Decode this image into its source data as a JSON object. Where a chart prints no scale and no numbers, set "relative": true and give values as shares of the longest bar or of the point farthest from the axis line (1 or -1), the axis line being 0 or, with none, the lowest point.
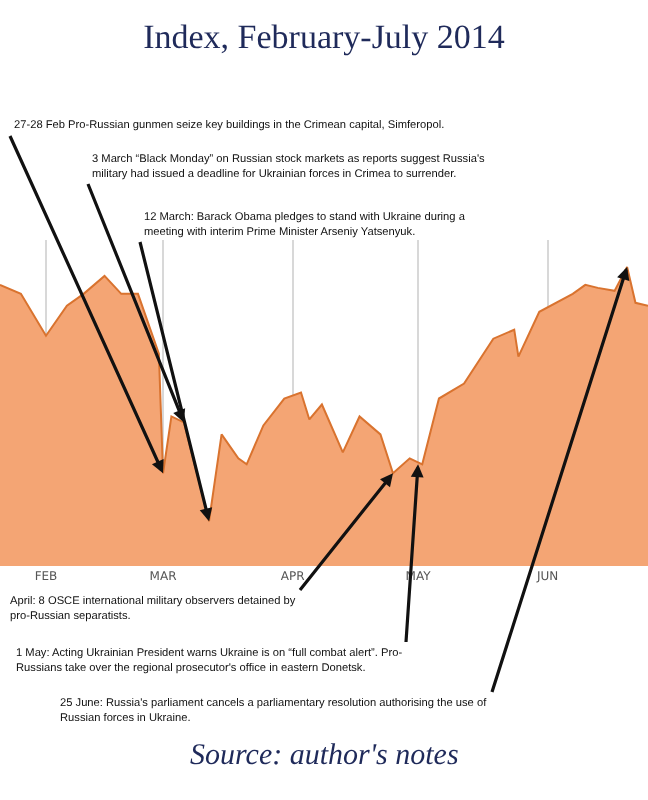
{
  "chart_data": {
    "type": "area",
    "title": "Index, February-July 2014",
    "relative": true,
    "grid": "x",
    "x": [
      "2014-01-21",
      "2014-01-26",
      "2014-02-01",
      "2014-02-06",
      "2014-02-10",
      "2014-02-15",
      "2014-02-19",
      "2014-02-23",
      "2014-02-28",
      "2014-03-01",
      "2014-03-03",
      "2014-03-06",
      "2014-03-12",
      "2014-03-15",
      "2014-03-19",
      "2014-03-21",
      "2014-03-25",
      "2014-03-30",
      "2014-04-03",
      "2014-04-05",
      "2014-04-08",
      "2014-04-13",
      "2014-04-17",
      "2014-04-22",
      "2014-04-25",
      "2014-04-29",
      "2014-05-02",
      "2014-05-06",
      "2014-05-12",
      "2014-05-19",
      "2014-05-24",
      "2014-05-25",
      "2014-05-30",
      "2014-06-07",
      "2014-06-10",
      "2014-06-13",
      "2014-06-17",
      "2014-06-20",
      "2014-06-22",
      "2014-06-25"
    ],
    "series": [
      {
        "color": "#f4a574",
        "values": [
          0.94,
          0.91,
          0.77,
          0.87,
          0.91,
          0.97,
          0.91,
          0.91,
          0.71,
          0.31,
          0.5,
          0.48,
          0.15,
          0.44,
          0.36,
          0.34,
          0.47,
          0.56,
          0.58,
          0.49,
          0.54,
          0.38,
          0.5,
          0.44,
          0.31,
          0.36,
          0.34,
          0.56,
          0.61,
          0.76,
          0.79,
          0.7,
          0.85,
          0.91,
          0.94,
          0.93,
          0.92,
          1.0,
          0.88,
          0.87
        ]
      }
    ],
    "xlim": [
      "2014-01-21",
      "2014-06-25"
    ],
    "xticks": [
      {
        "value": "2014-02-01",
        "label": "FEB"
      },
      {
        "value": "2014-03-01",
        "label": "MAR"
      },
      {
        "value": "2014-04-01",
        "label": "APR"
      },
      {
        "value": "2014-05-01",
        "label": "MAY"
      },
      {
        "value": "2014-06-01",
        "label": "JUN"
      }
    ],
    "annotations": [
      {
        "text": "27-28 Feb Pro-Russian gunmen seize key buildings in the Crimean capital, Simferopol.",
        "x": "2014-03-01",
        "y": 0.31
      },
      {
        "text": "3 March “Black Monday” on Russian stock markets as reports suggest Russia's military had issued a deadline for Ukrainian forces in Crimea to surrender.",
        "x": "2014-03-06",
        "y": 0.48
      },
      {
        "text": "12 March: Barack Obama pledges to stand with Ukraine during a meeting with interim Prime Minister Arseniy Yatsenyuk.",
        "x": "2014-03-12",
        "y": 0.15
      },
      {
        "text": "April: 8 OSCE international military observers detained by pro-Russian separatists.",
        "x": "2014-04-25",
        "y": 0.31
      },
      {
        "text": "1 May: Acting Ukrainian President warns Ukraine is on “full combat alert”. Pro-Russians take over the regional prosecutor's office in eastern Donetsk.",
        "x": "2014-05-01",
        "y": 0.34
      },
      {
        "text": "25 June: Russia's parliament cancels a parliamentary resolution authorising the use of Russian forces in Ukraine.",
        "x": "2014-06-20",
        "y": 1.0
      },
      "Source: author's notes"
    ]
  }
}
